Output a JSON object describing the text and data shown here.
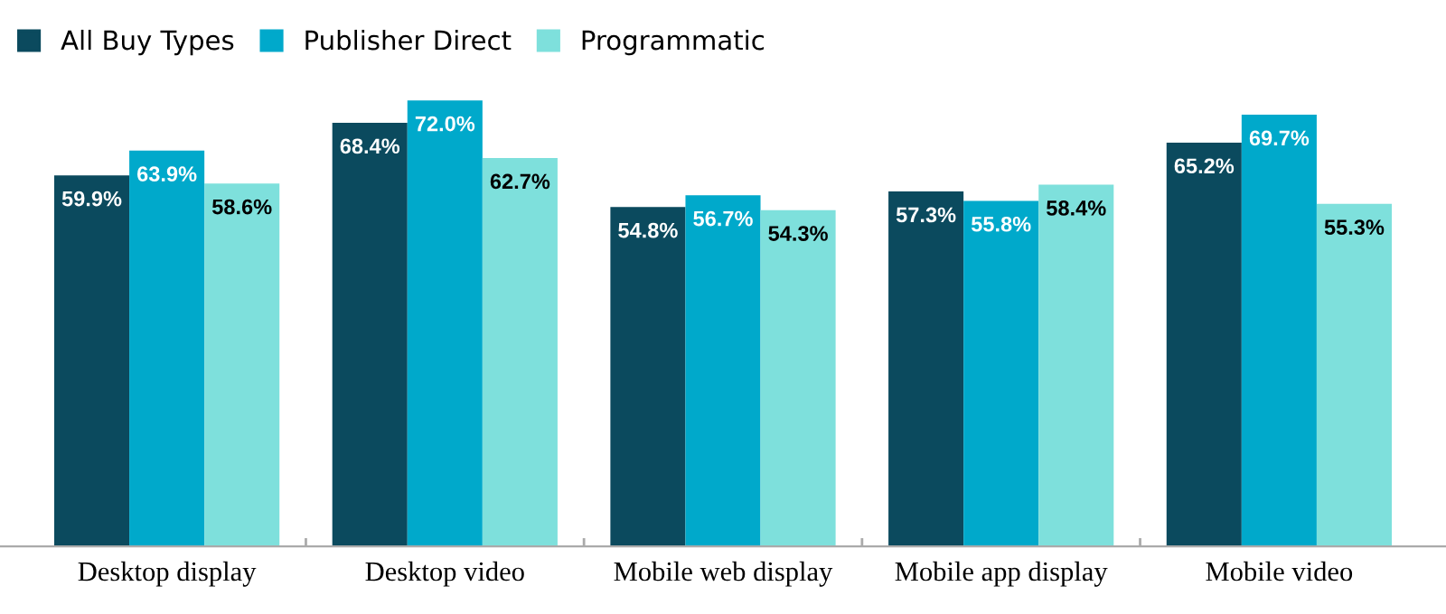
{
  "chart_data": {
    "type": "bar",
    "categories": [
      "Desktop display",
      "Desktop video",
      "Mobile web display",
      "Mobile app display",
      "Mobile video"
    ],
    "series": [
      {
        "name": "All Buy Types",
        "color": "#0b4a5e",
        "values": [
          59.9,
          68.4,
          54.8,
          57.3,
          65.2
        ],
        "value_labels": [
          "59.9%",
          "68.4%",
          "54.8%",
          "57.3%",
          "65.2%"
        ]
      },
      {
        "name": "Publisher Direct",
        "color": "#00a9cb",
        "values": [
          63.9,
          72.0,
          56.7,
          55.8,
          69.7
        ],
        "value_labels": [
          "63.9%",
          "72.0%",
          "56.7%",
          "55.8%",
          "69.7%"
        ]
      },
      {
        "name": "Programmatic",
        "color": "#7ee0dc",
        "values": [
          58.6,
          62.7,
          54.3,
          58.4,
          55.3
        ],
        "value_labels": [
          "58.6%",
          "62.7%",
          "54.3%",
          "58.4%",
          "55.3%"
        ]
      }
    ],
    "tick_labels": "x",
    "grid": false,
    "legend": "top left"
  }
}
